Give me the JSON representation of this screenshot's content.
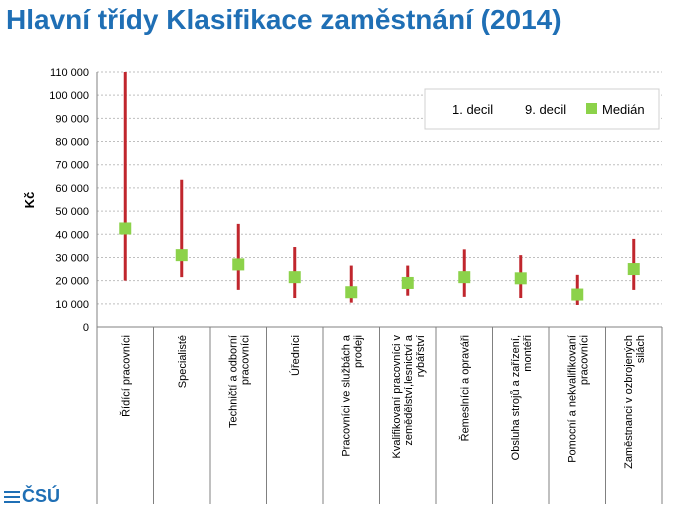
{
  "slide": {
    "title": "Hlavní třídy Klasifikace zaměstnání (2014)"
  },
  "logo": {
    "text": "ČSÚ"
  },
  "colors": {
    "range": "#c0262d",
    "median": "#8cd24a",
    "grid": "#bfbfbf",
    "title": "#1f6fb5"
  },
  "chart_data": {
    "type": "range-with-median",
    "ylabel": "Kč",
    "ylim": [
      0,
      110000
    ],
    "yticks": [
      0,
      10000,
      20000,
      30000,
      40000,
      50000,
      60000,
      70000,
      80000,
      90000,
      100000,
      110000
    ],
    "ytick_labels": [
      "0",
      "10 000",
      "20 000",
      "30 000",
      "40 000",
      "50 000",
      "60 000",
      "70 000",
      "80 000",
      "90 000",
      "100 000",
      "110 000"
    ],
    "grid": true,
    "legend": {
      "placement": "top-right",
      "entries": [
        "1. decil",
        "9. decil",
        "Medián"
      ]
    },
    "categories": [
      [
        "Řídící pracovníci"
      ],
      [
        "Specialisté"
      ],
      [
        "Techničtí a odborní",
        "pracovníci"
      ],
      [
        "Úředníci"
      ],
      [
        "Pracovníci ve službách a",
        "prodeji"
      ],
      [
        "Kvalifikovaní pracovníci v",
        "zemědělství,lesnictví a",
        "rybářství"
      ],
      [
        "Řemeslníci a opraváři"
      ],
      [
        "Obsluha strojů a zařízení,",
        "montéři"
      ],
      [
        "Pomocní a nekvalifikovaní",
        "pracovníci"
      ],
      [
        "Zaměstnanci v ozbrojených",
        "silách"
      ]
    ],
    "series": [
      {
        "name": "1. decil",
        "values": [
          20000,
          21500,
          16000,
          12500,
          10500,
          13500,
          13000,
          12500,
          9500,
          16000
        ]
      },
      {
        "name": "9. decil",
        "values": [
          110000,
          63500,
          44500,
          34500,
          26500,
          26500,
          33500,
          31000,
          22500,
          38000
        ]
      },
      {
        "name": "Medián",
        "values": [
          42500,
          31000,
          27000,
          21500,
          15000,
          19000,
          21500,
          21000,
          14000,
          25000
        ]
      }
    ]
  }
}
